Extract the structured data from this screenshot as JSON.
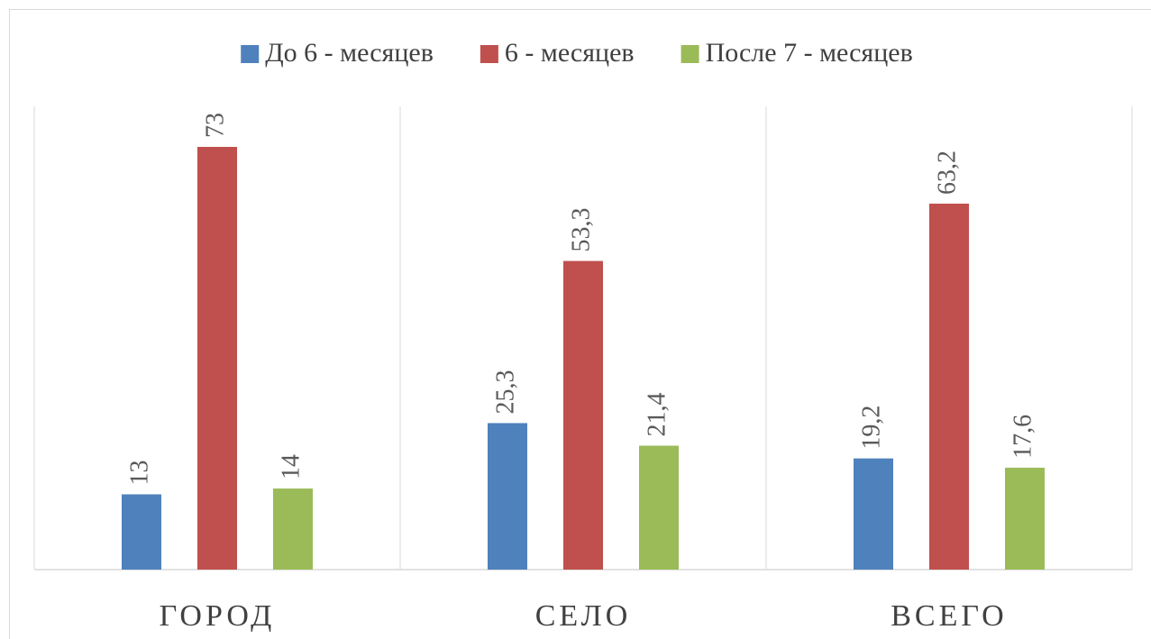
{
  "chart_data": {
    "type": "bar",
    "categories": [
      "ГОРОД",
      "СЕЛО",
      "ВСЕГО"
    ],
    "series": [
      {
        "name": "До 6 - месяцев",
        "color": "#4f81bd",
        "values": [
          13,
          25.3,
          19.2
        ],
        "value_labels": [
          "13",
          "25,3",
          "19,2"
        ]
      },
      {
        "name": "6 - месяцев",
        "color": "#c0504d",
        "values": [
          73,
          53.3,
          63.2
        ],
        "value_labels": [
          "73",
          "53,3",
          "63,2"
        ]
      },
      {
        "name": "После 7 - месяцев",
        "color": "#9bbb59",
        "values": [
          14,
          21.4,
          17.6
        ],
        "value_labels": [
          "14",
          "21,4",
          "17,6"
        ]
      }
    ],
    "ylim": [
      0,
      80
    ],
    "legend": "top"
  }
}
